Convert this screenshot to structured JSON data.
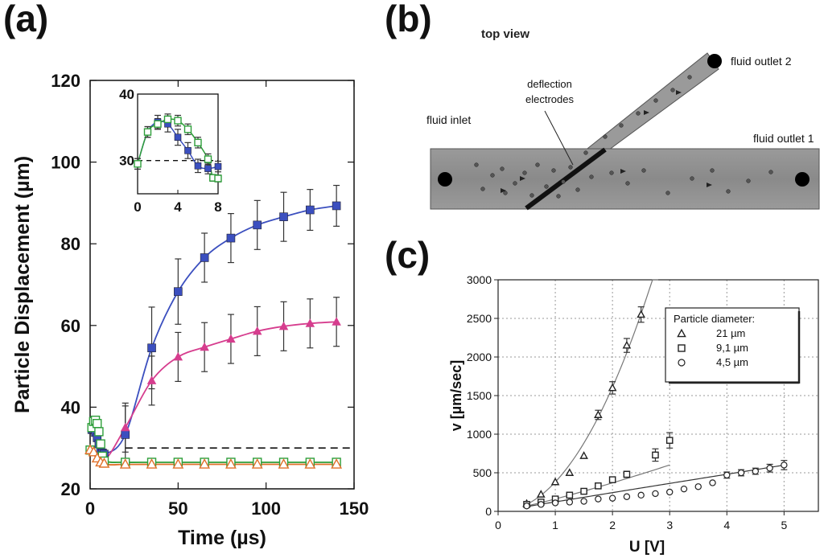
{
  "chart_data": [
    {
      "panel": "(a)",
      "type": "line",
      "title": "",
      "xlabel": "Time (µs)",
      "ylabel": "Particle Displacement (µm)",
      "xlim": [
        0,
        150
      ],
      "ylim": [
        20,
        120
      ],
      "xticks": [
        0,
        50,
        100,
        150
      ],
      "yticks": [
        20,
        40,
        60,
        80,
        100,
        120
      ],
      "reference_line": 30,
      "series": [
        {
          "name": "blue squares",
          "color": "#3b4fbf",
          "marker": "square-filled",
          "x": [
            0,
            1,
            2,
            3,
            4,
            5,
            6,
            7,
            8,
            20,
            35,
            50,
            65,
            80,
            95,
            110,
            125,
            140
          ],
          "y": [
            29.5,
            34.5,
            34.6,
            33.8,
            32.5,
            31.0,
            29.3,
            28.8,
            28.5,
            33.3,
            54.5,
            68.3,
            76.6,
            81.4,
            84.6,
            86.6,
            88.3,
            89.3
          ],
          "err": [
            0,
            0,
            0,
            0,
            0,
            0,
            0,
            0,
            0,
            7,
            10,
            8,
            6,
            6,
            6,
            6,
            5,
            5
          ]
        },
        {
          "name": "magenta triangles",
          "color": "#d63d8e",
          "marker": "triangle-filled",
          "x": [
            0,
            2,
            4,
            6,
            8,
            20,
            35,
            50,
            65,
            80,
            95,
            110,
            125,
            140
          ],
          "y": [
            29.5,
            29.0,
            27.5,
            26.5,
            27.0,
            35.0,
            46.5,
            52.3,
            54.7,
            56.7,
            58.6,
            59.8,
            60.5,
            60.9
          ],
          "err": [
            0,
            0,
            0,
            0,
            0,
            6,
            6,
            6,
            6,
            6,
            6,
            6,
            6,
            6
          ]
        },
        {
          "name": "green open squares",
          "color": "#2e9e3a",
          "marker": "square-open",
          "x": [
            0,
            1,
            2,
            3,
            4,
            5,
            6,
            7,
            8,
            20,
            35,
            50,
            65,
            80,
            95,
            110,
            125,
            140
          ],
          "y": [
            29.5,
            35.0,
            36.5,
            36.8,
            36.0,
            34.0,
            31.0,
            28.0,
            26.8,
            26.5,
            26.5,
            26.5,
            26.5,
            26.5,
            26.5,
            26.5,
            26.5,
            26.5
          ]
        },
        {
          "name": "orange open triangles",
          "color": "#e0702a",
          "marker": "triangle-open",
          "x": [
            0,
            2,
            4,
            6,
            8,
            20,
            35,
            50,
            65,
            80,
            95,
            110,
            125,
            140
          ],
          "y": [
            29.5,
            29.0,
            27.5,
            26.5,
            26.2,
            26.0,
            26.0,
            26.0,
            26.0,
            26.0,
            26.0,
            26.0,
            26.0,
            26.0
          ]
        }
      ],
      "inset": {
        "xlim": [
          0,
          8
        ],
        "ylim": [
          25,
          40
        ],
        "xticks": [
          0,
          4,
          8
        ],
        "yticks": [
          30,
          40
        ],
        "reference_line": 30,
        "series": [
          {
            "name": "blue squares",
            "color": "#3b4fbf",
            "marker": "square-filled",
            "x": [
              0,
              1,
              2,
              3,
              4,
              5,
              6,
              7,
              8
            ],
            "y": [
              29.5,
              34.3,
              35.8,
              35.5,
              33.5,
              31.5,
              29.2,
              28.8,
              29.1
            ],
            "err": [
              0.8,
              0.8,
              1.0,
              1.2,
              1.2,
              1.2,
              1.0,
              0.8,
              0.8
            ]
          },
          {
            "name": "green open squares",
            "color": "#2e9e3a",
            "marker": "square-open",
            "x": [
              0,
              1,
              2,
              3,
              4,
              5,
              6,
              7,
              7.5,
              8
            ],
            "y": [
              29.5,
              34.3,
              35.5,
              36.2,
              36.0,
              34.7,
              32.7,
              30.2,
              27.4,
              27.3
            ],
            "err": [
              0.8,
              0.8,
              0.8,
              0.8,
              0.8,
              0.8,
              0.8,
              0.8,
              0.5,
              0.5
            ]
          }
        ]
      }
    },
    {
      "panel": "(c)",
      "type": "scatter",
      "title": "",
      "xlabel": "U [V]",
      "ylabel": "v [µm/sec]",
      "xlim": [
        0,
        5.6
      ],
      "ylim": [
        0,
        3000
      ],
      "xticks": [
        0,
        1,
        2,
        3,
        4,
        5
      ],
      "yticks": [
        0,
        500,
        1000,
        1500,
        2000,
        2500,
        3000
      ],
      "grid": true,
      "legend_title": "Particle diameter:",
      "legend_position": "top-right",
      "series": [
        {
          "name": "21 µm",
          "symbol": "Δ",
          "marker": "triangle-open",
          "x": [
            0.5,
            0.75,
            1.0,
            1.25,
            1.5,
            1.75,
            2.0,
            2.25,
            2.5
          ],
          "y": [
            100,
            220,
            380,
            500,
            720,
            1250,
            1600,
            2150,
            2550
          ],
          "err": [
            0,
            0,
            0,
            0,
            0,
            60,
            80,
            90,
            100
          ]
        },
        {
          "name": "9,1 µm",
          "symbol": "□",
          "marker": "square-open",
          "x": [
            0.5,
            0.75,
            1.0,
            1.25,
            1.5,
            1.75,
            2.0,
            2.25,
            2.75,
            3.0
          ],
          "y": [
            90,
            120,
            160,
            210,
            260,
            330,
            410,
            480,
            730,
            920
          ],
          "err": [
            0,
            0,
            0,
            0,
            0,
            0,
            0,
            40,
            80,
            100
          ]
        },
        {
          "name": "4,5  µm",
          "symbol": "○",
          "marker": "circle-open",
          "x": [
            0.5,
            0.75,
            1.0,
            1.25,
            1.5,
            1.75,
            2.0,
            2.25,
            2.5,
            2.75,
            3.0,
            3.25,
            3.5,
            3.75,
            4.0,
            4.25,
            4.5,
            4.75,
            5.0
          ],
          "y": [
            70,
            90,
            110,
            120,
            130,
            160,
            170,
            190,
            210,
            230,
            250,
            290,
            320,
            370,
            470,
            500,
            520,
            560,
            600
          ],
          "err": [
            0,
            0,
            0,
            0,
            0,
            0,
            0,
            0,
            0,
            0,
            0,
            0,
            0,
            0,
            40,
            40,
            40,
            50,
            60
          ]
        }
      ]
    }
  ],
  "panels": {
    "a": {
      "letter": "(a)"
    },
    "b": {
      "letter": "(b)"
    },
    "c": {
      "letter": "(c)"
    }
  },
  "diagram_b": {
    "heading": "top view",
    "labels": {
      "deflection": "deflection\nelectrodes",
      "inlet": "fluid inlet",
      "outlet1": "fluid outlet 1",
      "outlet2": "fluid outlet 2"
    }
  }
}
